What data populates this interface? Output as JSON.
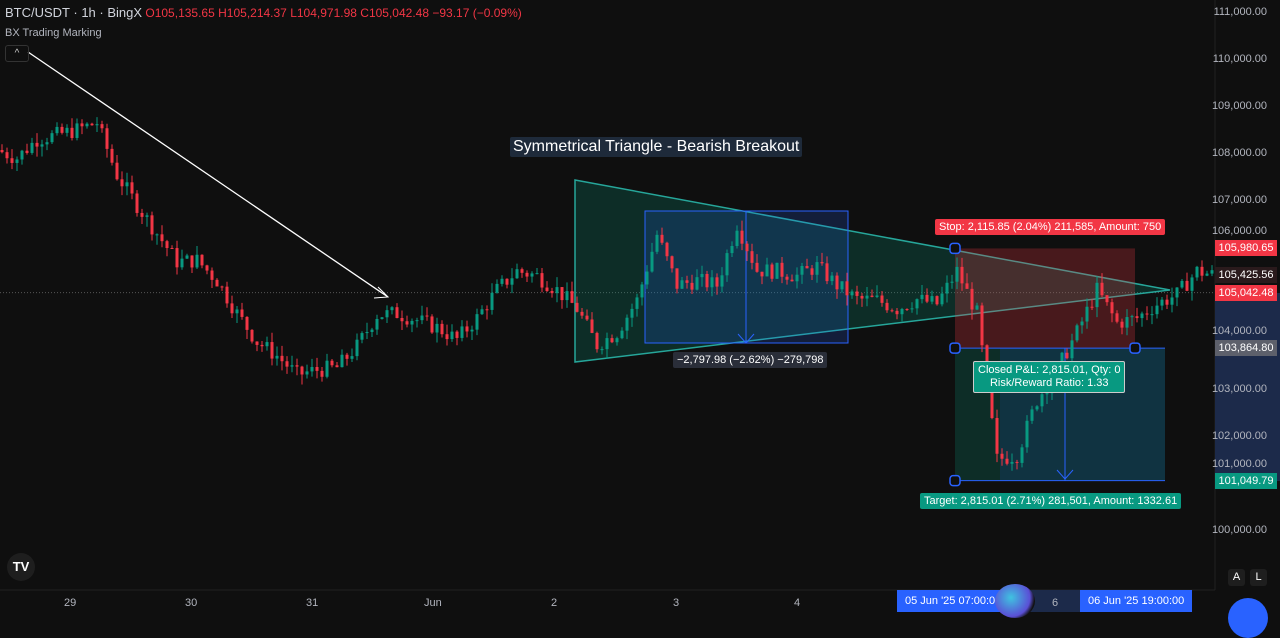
{
  "header": {
    "symbol": "BTC/USDT · 1h · BingX",
    "open": "O105,135.65",
    "high": "H105,214.37",
    "low": "L104,971.98",
    "close": "C105,042.48",
    "change": "−93.17 (−0.09%)",
    "indicator": "BX Trading Marking"
  },
  "annotations": {
    "title": "Symmetrical Triangle - Bearish Breakout",
    "measure": "−2,797.98 (−2.62%) −279,798",
    "stop": "Stop: 2,115.85 (2.04%) 211,585, Amount: 750",
    "pnl_line1": "Closed P&L: 2,815.01, Qty: 0",
    "pnl_line2": "Risk/Reward Ratio: 1.33",
    "target": "Target: 2,815.01 (2.71%) 281,501, Amount: 1332.61"
  },
  "price_axis": {
    "ticks": [
      "111,000.00",
      "110,000.00",
      "109,000.00",
      "108,000.00",
      "107,000.00",
      "106,000.00",
      "104,000.00",
      "103,000.00",
      "102,000.00",
      "101,000.00",
      "100,000.00"
    ],
    "markers": [
      {
        "label": "105,980.65",
        "price": 105980.65,
        "color": "#f23645"
      },
      {
        "label": "105,425.56",
        "price": 105425.56,
        "color": "#2a1a1c"
      },
      {
        "label": "105,042.48",
        "price": 105042.48,
        "color": "#f23645"
      },
      {
        "label": "103,864.80",
        "price": 103864.8,
        "color": "#5d606b"
      },
      {
        "label": "101,049.79",
        "price": 101049.79,
        "color": "#089981"
      }
    ]
  },
  "time_axis": {
    "ticks": [
      "29",
      "30",
      "31",
      "Jun",
      "2",
      "3",
      "4",
      "6"
    ],
    "range_start": "05 Jun '25   07:00:00",
    "range_end": "06 Jun '25   19:00:00"
  },
  "buttons": {
    "auto": "A",
    "log": "L"
  },
  "logo": "TV",
  "colors": {
    "up": "#089981",
    "down": "#f23645",
    "background": "#0f0f0f"
  },
  "chart_data": {
    "type": "candlestick",
    "interval": "1h",
    "note_resolution": "closes sampled every 4h",
    "start": "28 May 12:00",
    "closes": [
      108070,
      107900,
      108300,
      108390,
      108500,
      108650,
      107540,
      106900,
      106300,
      105700,
      105730,
      105300,
      104600,
      104000,
      103700,
      103300,
      103400,
      103450,
      103900,
      104570,
      104600,
      104460,
      104300,
      104050,
      104500,
      105100,
      105500,
      105400,
      105100,
      104700,
      103930,
      104200,
      104880,
      106270,
      105200,
      105300,
      105200,
      106500,
      105520,
      105500,
      105400,
      105600,
      105200,
      104900,
      104880,
      104700,
      104900,
      104800,
      105500,
      104600,
      101500,
      101600,
      102760,
      103400,
      104200,
      105100,
      104400,
      104500,
      104800,
      105000,
      105500,
      105400
    ],
    "ylim": [
      99500,
      111200
    ],
    "grid": false
  }
}
